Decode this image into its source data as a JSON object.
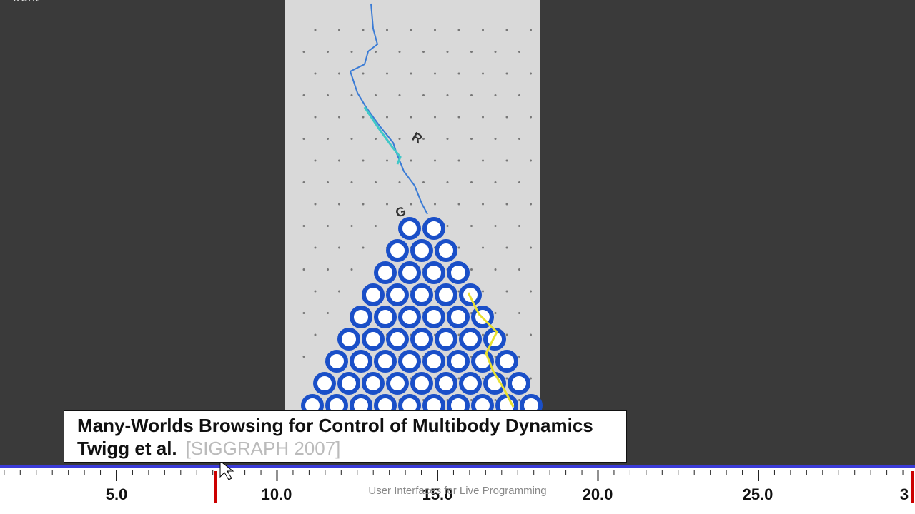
{
  "viewport": {
    "label": "front"
  },
  "scene": {
    "markers": [
      "R",
      "G"
    ]
  },
  "caption": {
    "title": "Many-Worlds Browsing for Control of Multibody Dynamics",
    "authors": "Twigg et al.",
    "venue": "[SIGGRAPH 2007]"
  },
  "timeline": {
    "labels": [
      "5.0",
      "10.0",
      "15.0",
      "20.0",
      "25.0",
      "3"
    ]
  },
  "watermark": "User Interfaces for Live Programming"
}
